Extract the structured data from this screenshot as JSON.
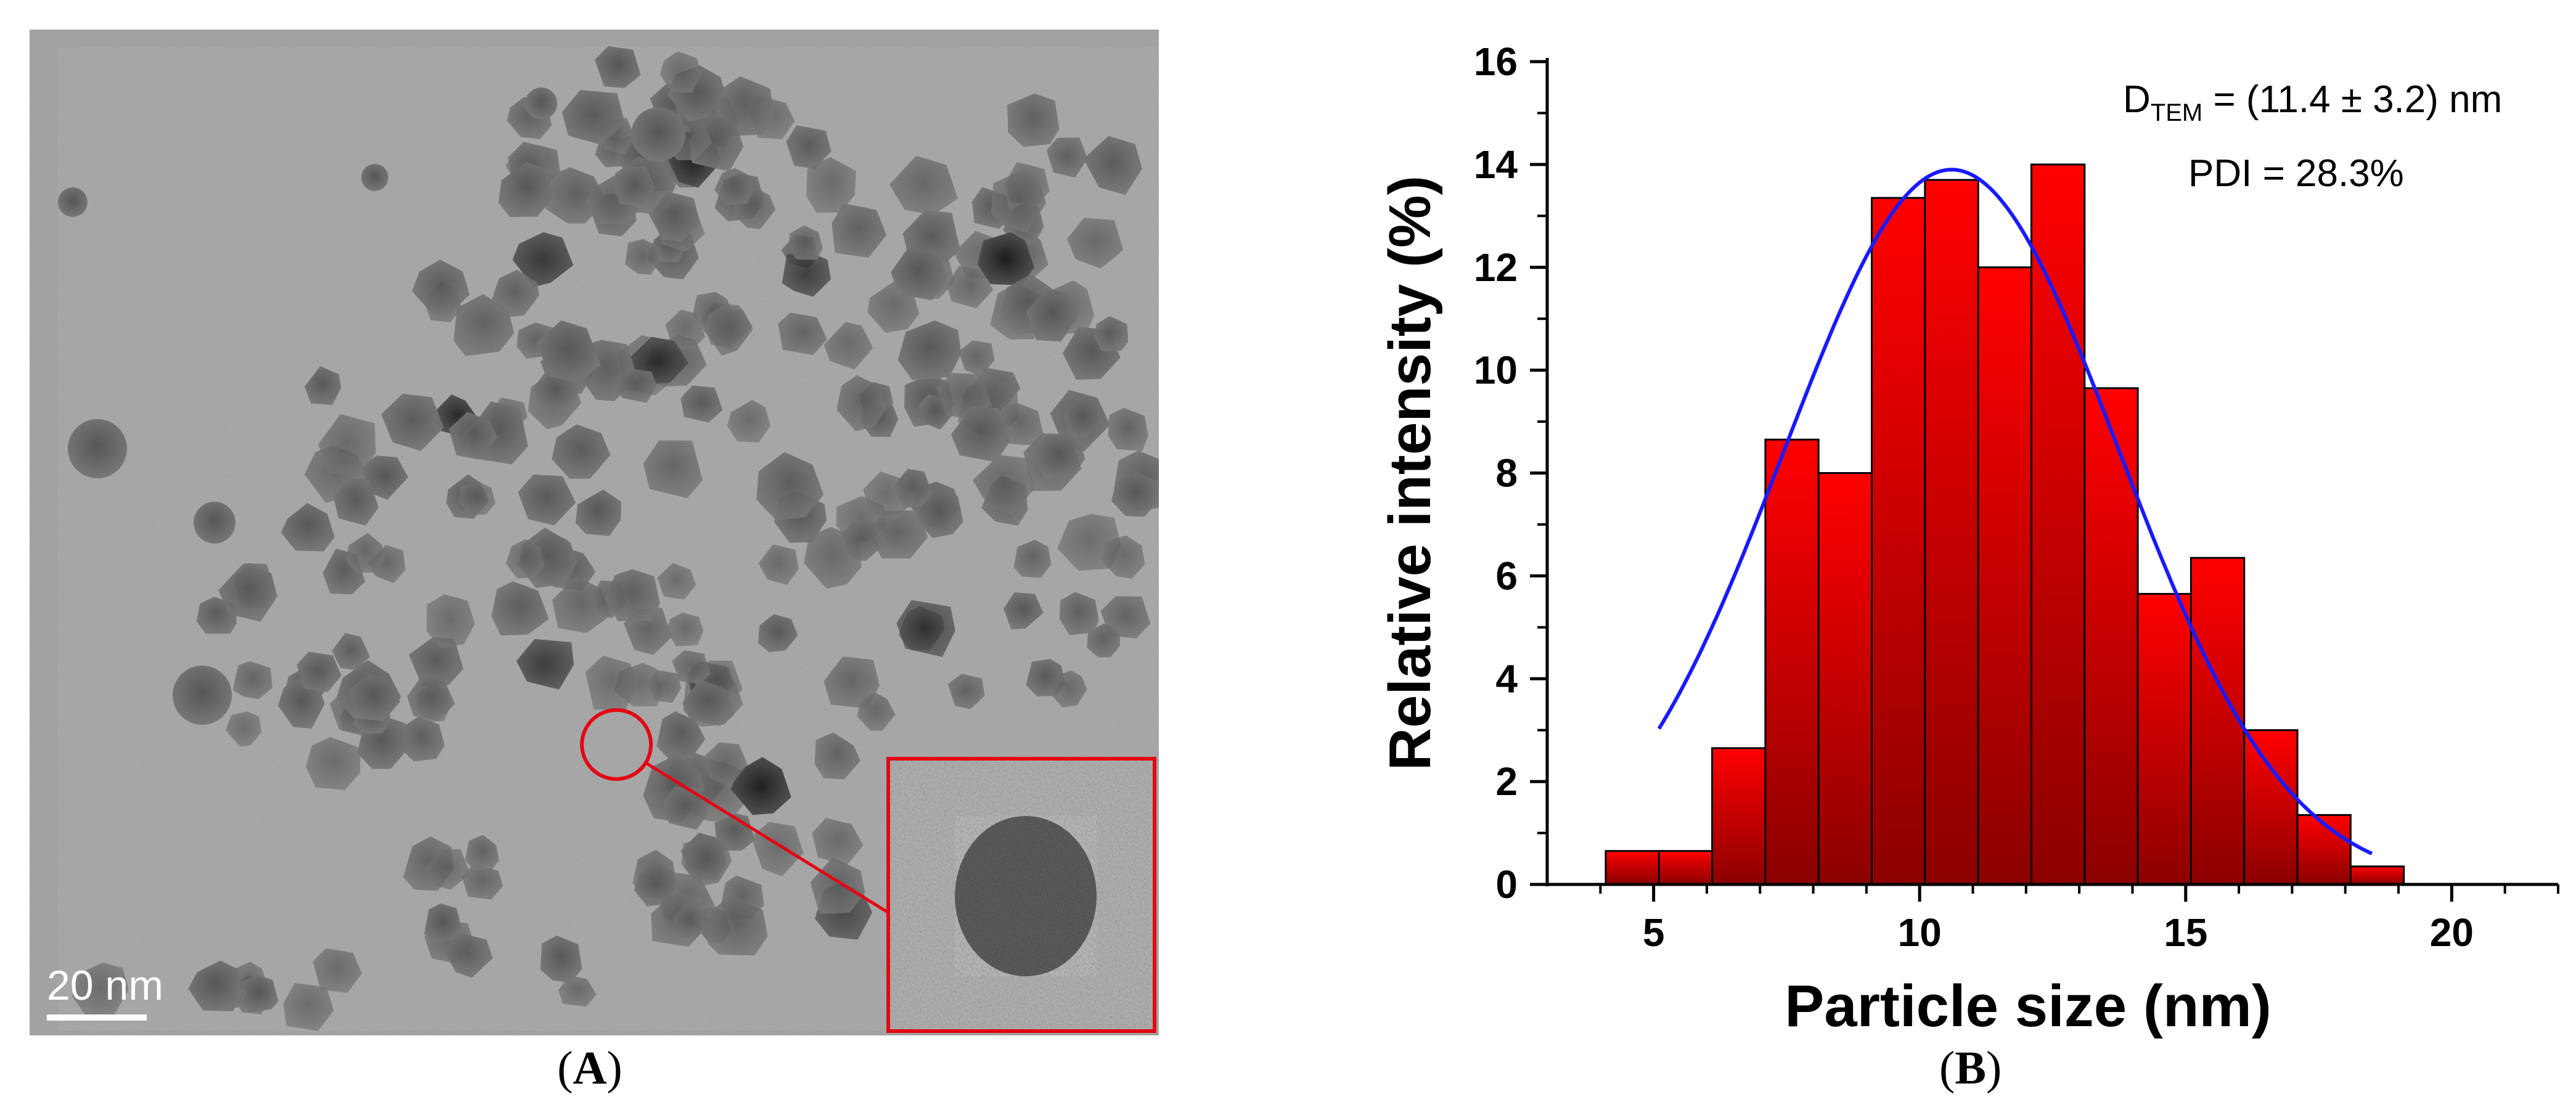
{
  "panels": {
    "a_label_open": "(",
    "a_label_letter": "A",
    "a_label_close": ")",
    "b_label_open": "(",
    "b_label_letter": "B",
    "b_label_close": ")"
  },
  "tem": {
    "scale_bar_text": "20 nm",
    "highlight_color": "#e30613"
  },
  "chart_data": {
    "type": "bar",
    "xlabel": "Particle size (nm)",
    "ylabel": "Relative intensity (%)",
    "xlim": [
      3,
      22
    ],
    "ylim": [
      0,
      16
    ],
    "x_ticks": [
      5,
      10,
      15,
      20
    ],
    "y_ticks": [
      0,
      2,
      4,
      6,
      8,
      10,
      12,
      14,
      16
    ],
    "bin_width": 1,
    "bins": [
      {
        "x": 4.6,
        "value": 0.65
      },
      {
        "x": 5.6,
        "value": 0.65
      },
      {
        "x": 6.6,
        "value": 2.65
      },
      {
        "x": 7.6,
        "value": 8.65
      },
      {
        "x": 8.6,
        "value": 8.0
      },
      {
        "x": 9.6,
        "value": 13.35
      },
      {
        "x": 10.6,
        "value": 13.7
      },
      {
        "x": 11.6,
        "value": 12.0
      },
      {
        "x": 12.6,
        "value": 14.0
      },
      {
        "x": 13.6,
        "value": 9.65
      },
      {
        "x": 14.6,
        "value": 5.65
      },
      {
        "x": 15.6,
        "value": 6.35
      },
      {
        "x": 16.6,
        "value": 3.0
      },
      {
        "x": 17.6,
        "value": 1.35
      },
      {
        "x": 18.6,
        "value": 0.35
      }
    ],
    "fit": {
      "type": "gaussian",
      "mean": 10.6,
      "sd": 3.15,
      "peak": 13.9,
      "x_range": [
        5.1,
        18.5
      ],
      "color": "#1a1aff"
    },
    "bar_color_top": "#ff0000",
    "bar_color_bottom": "#8b0000",
    "annotations": {
      "d_main": "D",
      "d_sub": "TEM",
      "d_value": " = (11.4 ± 3.2) nm",
      "pdi": "PDI = 28.3%"
    }
  }
}
